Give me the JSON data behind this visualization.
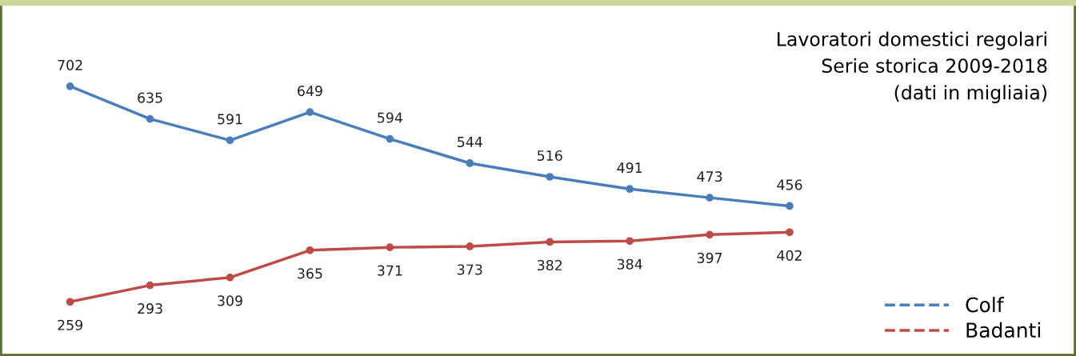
{
  "chart_data": {
    "type": "line",
    "title": "Lavoratori domestici regolari",
    "subtitle": "Serie storica 2009-2018",
    "annotations": [
      "(dati in migliaia)"
    ],
    "categories": [
      null,
      null,
      null,
      null,
      null,
      null,
      null,
      null,
      null,
      null
    ],
    "series": [
      {
        "name": "Colf",
        "color": "#4a7ebb",
        "values": [
          702,
          635,
          591,
          649,
          594,
          544,
          516,
          491,
          473,
          456
        ]
      },
      {
        "name": "Badanti",
        "color": "#be4b48",
        "values": [
          259,
          293,
          309,
          365,
          371,
          373,
          382,
          384,
          397,
          402
        ]
      }
    ],
    "data_labels": true,
    "marker": "circle",
    "line_style": "solid",
    "legend": "bottom right",
    "grid": false
  }
}
